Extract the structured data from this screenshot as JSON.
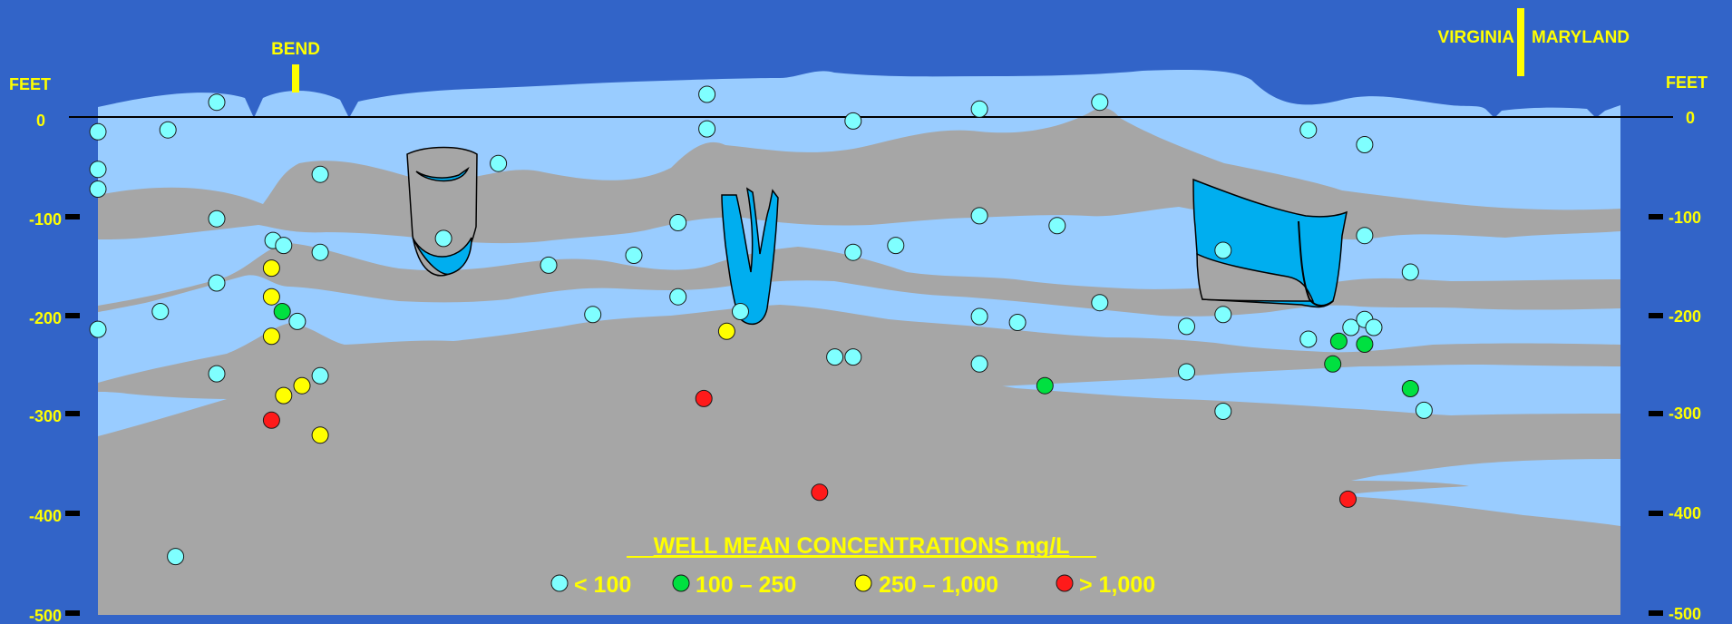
{
  "colors": {
    "background": "#3264C8",
    "aquifer": "#99CCFF",
    "confining_unit": "#A6A6A6",
    "saltwater_zone": "#00AEEF",
    "label": "#FFFF00",
    "class_low": "#7FFFFF",
    "class_moderate": "#00E040",
    "class_high": "#FFFF00",
    "class_very_high": "#FF1A1A"
  },
  "axis": {
    "left_unit": "FEET",
    "right_unit": "FEET",
    "ticks": [
      {
        "value": 0,
        "label": "0"
      },
      {
        "value": -100,
        "label": "-100"
      },
      {
        "value": -200,
        "label": "-200"
      },
      {
        "value": -300,
        "label": "-300"
      },
      {
        "value": -400,
        "label": "-400"
      },
      {
        "value": -500,
        "label": "-500"
      }
    ]
  },
  "annotations": {
    "bend": "BEND",
    "virginia": "VIRGINIA",
    "maryland": "MARYLAND"
  },
  "legend": {
    "title": "WELL MEAN CONCENTRATIONS mg/L",
    "items": [
      {
        "label": "< 100",
        "class": "low"
      },
      {
        "label": "100 – 250",
        "class": "moderate"
      },
      {
        "label": "250 – 1,000",
        "class": "high"
      },
      {
        "label": "> 1,000",
        "class": "very_high"
      }
    ]
  },
  "wells": [
    {
      "d": 0.0,
      "elev": -15,
      "class": "low"
    },
    {
      "d": 0.0,
      "elev": -53,
      "class": "low"
    },
    {
      "d": 0.0,
      "elev": -73,
      "class": "low"
    },
    {
      "d": 0.0,
      "elev": -215,
      "class": "low"
    },
    {
      "d": 4.6,
      "elev": -13,
      "class": "low"
    },
    {
      "d": 4.1,
      "elev": -197,
      "class": "low"
    },
    {
      "d": 5.1,
      "elev": -445,
      "class": "low"
    },
    {
      "d": 7.8,
      "elev": 15,
      "class": "low"
    },
    {
      "d": 7.8,
      "elev": -103,
      "class": "low"
    },
    {
      "d": 7.8,
      "elev": -168,
      "class": "low"
    },
    {
      "d": 7.8,
      "elev": -260,
      "class": "low"
    },
    {
      "d": 11.5,
      "elev": -125,
      "class": "low"
    },
    {
      "d": 12.2,
      "elev": -130,
      "class": "low"
    },
    {
      "d": 13.1,
      "elev": -207,
      "class": "low"
    },
    {
      "d": 14.6,
      "elev": -58,
      "class": "low"
    },
    {
      "d": 14.6,
      "elev": -137,
      "class": "low"
    },
    {
      "d": 14.6,
      "elev": -262,
      "class": "low"
    },
    {
      "d": 22.7,
      "elev": -123,
      "class": "low"
    },
    {
      "d": 26.3,
      "elev": -47,
      "class": "low"
    },
    {
      "d": 29.6,
      "elev": -150,
      "class": "low"
    },
    {
      "d": 32.5,
      "elev": -200,
      "class": "low"
    },
    {
      "d": 35.2,
      "elev": -140,
      "class": "low"
    },
    {
      "d": 38.1,
      "elev": -107,
      "class": "low"
    },
    {
      "d": 38.1,
      "elev": -182,
      "class": "low"
    },
    {
      "d": 40.0,
      "elev": 23,
      "class": "low"
    },
    {
      "d": 40.0,
      "elev": -12,
      "class": "low"
    },
    {
      "d": 42.2,
      "elev": -197,
      "class": "low"
    },
    {
      "d": 48.4,
      "elev": -243,
      "class": "low"
    },
    {
      "d": 49.6,
      "elev": -243,
      "class": "low"
    },
    {
      "d": 49.6,
      "elev": -4,
      "class": "low"
    },
    {
      "d": 49.6,
      "elev": -137,
      "class": "low"
    },
    {
      "d": 52.4,
      "elev": -130,
      "class": "low"
    },
    {
      "d": 57.9,
      "elev": 8,
      "class": "low"
    },
    {
      "d": 57.9,
      "elev": -100,
      "class": "low"
    },
    {
      "d": 57.9,
      "elev": -202,
      "class": "low"
    },
    {
      "d": 57.9,
      "elev": -250,
      "class": "low"
    },
    {
      "d": 60.4,
      "elev": -208,
      "class": "low"
    },
    {
      "d": 63.0,
      "elev": -110,
      "class": "low"
    },
    {
      "d": 65.8,
      "elev": 15,
      "class": "low"
    },
    {
      "d": 65.8,
      "elev": -188,
      "class": "low"
    },
    {
      "d": 71.5,
      "elev": -212,
      "class": "low"
    },
    {
      "d": 71.5,
      "elev": -258,
      "class": "low"
    },
    {
      "d": 73.9,
      "elev": -135,
      "class": "low"
    },
    {
      "d": 73.9,
      "elev": -200,
      "class": "low"
    },
    {
      "d": 73.9,
      "elev": -298,
      "class": "low"
    },
    {
      "d": 79.5,
      "elev": -13,
      "class": "low"
    },
    {
      "d": 79.5,
      "elev": -225,
      "class": "low"
    },
    {
      "d": 82.3,
      "elev": -213,
      "class": "low"
    },
    {
      "d": 83.2,
      "elev": -28,
      "class": "low"
    },
    {
      "d": 83.2,
      "elev": -120,
      "class": "low"
    },
    {
      "d": 83.2,
      "elev": -205,
      "class": "low"
    },
    {
      "d": 83.8,
      "elev": -213,
      "class": "low"
    },
    {
      "d": 86.2,
      "elev": -157,
      "class": "low"
    },
    {
      "d": 87.1,
      "elev": -297,
      "class": "low"
    },
    {
      "d": 12.1,
      "elev": -197,
      "class": "moderate"
    },
    {
      "d": 62.2,
      "elev": -272,
      "class": "moderate"
    },
    {
      "d": 81.5,
      "elev": -227,
      "class": "moderate"
    },
    {
      "d": 81.1,
      "elev": -250,
      "class": "moderate"
    },
    {
      "d": 83.2,
      "elev": -230,
      "class": "moderate"
    },
    {
      "d": 86.2,
      "elev": -275,
      "class": "moderate"
    },
    {
      "d": 11.4,
      "elev": -153,
      "class": "high"
    },
    {
      "d": 11.4,
      "elev": -182,
      "class": "high"
    },
    {
      "d": 11.4,
      "elev": -222,
      "class": "high"
    },
    {
      "d": 12.2,
      "elev": -282,
      "class": "high"
    },
    {
      "d": 13.4,
      "elev": -272,
      "class": "high"
    },
    {
      "d": 14.6,
      "elev": -322,
      "class": "high"
    },
    {
      "d": 41.3,
      "elev": -217,
      "class": "high"
    },
    {
      "d": 11.4,
      "elev": -307,
      "class": "very_high"
    },
    {
      "d": 39.8,
      "elev": -285,
      "class": "very_high"
    },
    {
      "d": 47.4,
      "elev": -380,
      "class": "very_high"
    },
    {
      "d": 82.1,
      "elev": -387,
      "class": "very_high"
    }
  ]
}
